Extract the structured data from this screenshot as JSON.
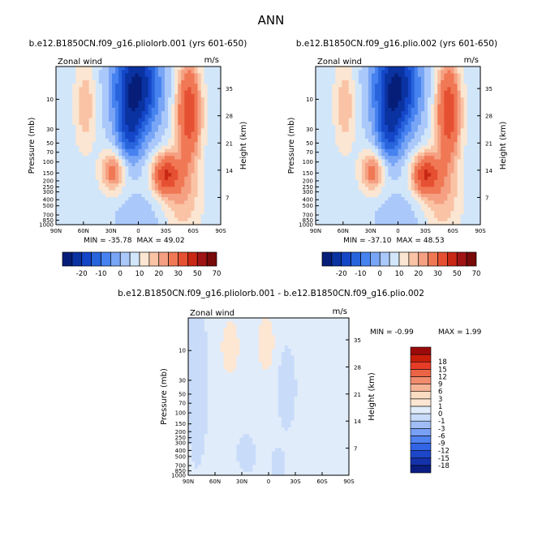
{
  "figure": {
    "title": "ANN",
    "colors": {
      "top_scale": [
        "#061e78",
        "#0a32a0",
        "#1446c8",
        "#2864dc",
        "#4682f0",
        "#78a5f5",
        "#aac8fa",
        "#d2e6fa",
        "#fae6d2",
        "#fac3a5",
        "#f5a082",
        "#f07855",
        "#e65032",
        "#c82814",
        "#a01414",
        "#780a0a"
      ],
      "diff_scale": [
        "#0a1e82",
        "#1432aa",
        "#1e46c8",
        "#3264e6",
        "#5082f0",
        "#78a0f5",
        "#a0bef5",
        "#c8dcfa",
        "#e1ecfa",
        "#fde6d2",
        "#fadcc3",
        "#f5b496",
        "#f08c6e",
        "#eb6446",
        "#e63c28",
        "#c81e0a",
        "#9b0a0a"
      ]
    }
  },
  "chart_data": [
    {
      "type": "heatmap",
      "title": "b.e12.B1850CN.f09_g16.pliolorb.001 (yrs 601-650)",
      "variable": "Zonal wind",
      "units": "m/s",
      "ylabel": "Pressure (mb)",
      "ylabel_right": "Height (km)",
      "x_ticks": [
        "90N",
        "60N",
        "30N",
        "0",
        "30S",
        "60S",
        "90S"
      ],
      "xlim": [
        90,
        -90
      ],
      "y_scale": "log",
      "ylim": [
        1000,
        3
      ],
      "p_ticks": [
        {
          "value": 10,
          "label": "10"
        },
        {
          "value": 30,
          "label": "30"
        },
        {
          "value": 50,
          "label": "50"
        },
        {
          "value": 70,
          "label": "70"
        },
        {
          "value": 100,
          "label": "100"
        },
        {
          "value": 150,
          "label": "150"
        },
        {
          "value": 200,
          "label": "200"
        },
        {
          "value": 250,
          "label": "250"
        },
        {
          "value": 300,
          "label": "300"
        },
        {
          "value": 400,
          "label": "400"
        },
        {
          "value": 500,
          "label": "500"
        },
        {
          "value": 700,
          "label": "700"
        },
        {
          "value": 850,
          "label": "850"
        },
        {
          "value": 1000,
          "label": "1000"
        }
      ],
      "height_ticks": [
        7,
        14,
        21,
        28,
        35
      ],
      "min_label": "MIN = -35.78",
      "max_label": "MAX = 49.02",
      "colorbar_orientation": "horizontal",
      "colorbar_labels": [
        "-20",
        "-10",
        "0",
        "10",
        "20",
        "30",
        "50",
        "70"
      ],
      "color_scale": "top_scale"
    },
    {
      "type": "heatmap",
      "title": "b.e12.B1850CN.f09_g16.plio.002 (yrs 601-650)",
      "variable": "Zonal wind",
      "units": "m/s",
      "ylabel": "Pressure (mb)",
      "ylabel_right": "Height (km)",
      "x_ticks": [
        "90N",
        "60N",
        "30N",
        "0",
        "30S",
        "60S",
        "90S"
      ],
      "xlim": [
        90,
        -90
      ],
      "y_scale": "log",
      "ylim": [
        1000,
        3
      ],
      "p_ticks": [
        {
          "value": 10,
          "label": "10"
        },
        {
          "value": 30,
          "label": "30"
        },
        {
          "value": 50,
          "label": "50"
        },
        {
          "value": 70,
          "label": "70"
        },
        {
          "value": 100,
          "label": "100"
        },
        {
          "value": 150,
          "label": "150"
        },
        {
          "value": 200,
          "label": "200"
        },
        {
          "value": 250,
          "label": "250"
        },
        {
          "value": 300,
          "label": "300"
        },
        {
          "value": 400,
          "label": "400"
        },
        {
          "value": 500,
          "label": "500"
        },
        {
          "value": 700,
          "label": "700"
        },
        {
          "value": 850,
          "label": "850"
        },
        {
          "value": 1000,
          "label": "1000"
        }
      ],
      "height_ticks": [
        7,
        14,
        21,
        28,
        35
      ],
      "min_label": "MIN = -37.10",
      "max_label": "MAX = 48.53",
      "colorbar_orientation": "horizontal",
      "colorbar_labels": [
        "-20",
        "-10",
        "0",
        "10",
        "20",
        "30",
        "50",
        "70"
      ],
      "color_scale": "top_scale"
    },
    {
      "type": "heatmap",
      "title": "b.e12.B1850CN.f09_g16.pliolorb.001 - b.e12.B1850CN.f09_g16.plio.002",
      "variable": "Zonal wind",
      "units": "m/s",
      "ylabel": "Pressure (mb)",
      "ylabel_right": "Height (km)",
      "x_ticks": [
        "90N",
        "60N",
        "30N",
        "0",
        "30S",
        "60S",
        "90S"
      ],
      "xlim": [
        90,
        -90
      ],
      "y_scale": "log",
      "ylim": [
        1000,
        3
      ],
      "p_ticks": [
        {
          "value": 10,
          "label": "10"
        },
        {
          "value": 30,
          "label": "30"
        },
        {
          "value": 50,
          "label": "50"
        },
        {
          "value": 70,
          "label": "70"
        },
        {
          "value": 100,
          "label": "100"
        },
        {
          "value": 150,
          "label": "150"
        },
        {
          "value": 200,
          "label": "200"
        },
        {
          "value": 250,
          "label": "250"
        },
        {
          "value": 300,
          "label": "300"
        },
        {
          "value": 400,
          "label": "400"
        },
        {
          "value": 500,
          "label": "500"
        },
        {
          "value": 700,
          "label": "700"
        },
        {
          "value": 850,
          "label": "850"
        },
        {
          "value": 1000,
          "label": "1000"
        }
      ],
      "height_ticks": [
        7,
        14,
        21,
        28,
        35
      ],
      "min_label": "MIN =   -0.99",
      "max_label": "MAX =    1.99",
      "colorbar_orientation": "vertical",
      "colorbar_labels": [
        "-18",
        "-15",
        "-12",
        "-9",
        "-6",
        "-3",
        "-1",
        "0",
        "1",
        "3",
        "6",
        "9",
        "12",
        "15",
        "18"
      ],
      "color_scale": "diff_scale"
    }
  ]
}
